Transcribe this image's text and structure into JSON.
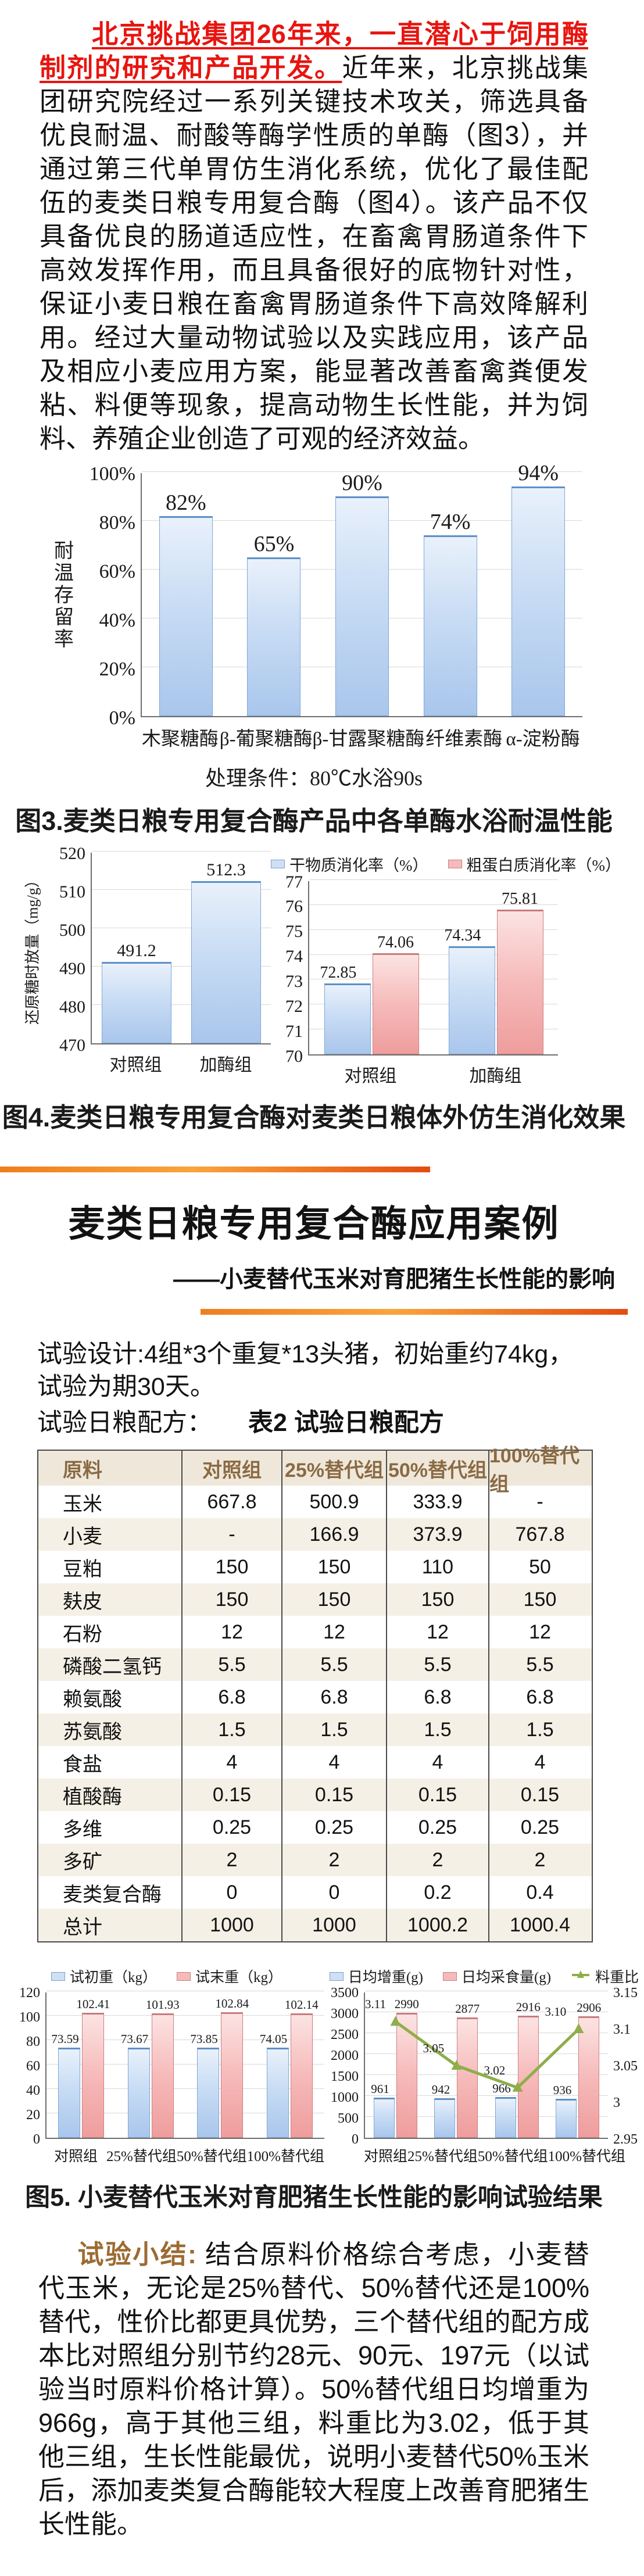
{
  "intro": {
    "highlight": "北京挑战集团26年来，一直潜心于饲用酶制剂的研究和产品开发。",
    "body": "近年来，北京挑战集团研究院经过一系列关键技术攻关，筛选具备优良耐温、耐酸等酶学性质的单酶（图3），并通过第三代单胃仿生消化系统，优化了最佳配伍的麦类日粮专用复合酶（图4）。该产品不仅具备优良的肠道适应性，在畜禽胃肠道条件下高效发挥作用，而且具备很好的底物针对性，保证小麦日粮在畜禽胃肠道条件下高效降解利用。经过大量动物试验以及实践应用，该产品及相应小麦应用方案，能显著改善畜禽粪便发粘、料便等现象，提高动物生长性能，并为饲料、养殖企业创造了可观的经济效益。"
  },
  "figure3": {
    "condition": "处理条件：80℃水浴90s",
    "caption": "图3.麦类日粮专用复合酶产品中各单酶水浴耐温性能"
  },
  "figure4": {
    "caption": "图4.麦类日粮专用复合酶对麦类日粮体外仿生消化效果"
  },
  "case_section": {
    "title": "麦类日粮专用复合酶应用案例",
    "subtitle": "——小麦替代玉米对育肥猪生长性能的影响",
    "design_line": "试验设计:4组*3个重复*13头猪，初始重约74kg，试验为期30天。",
    "formula_label": "试验日粮配方：",
    "table_title": "表2 试验日粮配方"
  },
  "table2": {
    "headers": [
      "原料",
      "对照组",
      "25%替代组",
      "50%替代组",
      "100%替代组"
    ],
    "rows": [
      [
        "玉米",
        "667.8",
        "500.9",
        "333.9",
        "-"
      ],
      [
        "小麦",
        "-",
        "166.9",
        "373.9",
        "767.8"
      ],
      [
        "豆粕",
        "150",
        "150",
        "110",
        "50"
      ],
      [
        "麸皮",
        "150",
        "150",
        "150",
        "150"
      ],
      [
        "石粉",
        "12",
        "12",
        "12",
        "12"
      ],
      [
        "磷酸二氢钙",
        "5.5",
        "5.5",
        "5.5",
        "5.5"
      ],
      [
        "赖氨酸",
        "6.8",
        "6.8",
        "6.8",
        "6.8"
      ],
      [
        "苏氨酸",
        "1.5",
        "1.5",
        "1.5",
        "1.5"
      ],
      [
        "食盐",
        "4",
        "4",
        "4",
        "4"
      ],
      [
        "植酸酶",
        "0.15",
        "0.15",
        "0.15",
        "0.15"
      ],
      [
        "多维",
        "0.25",
        "0.25",
        "0.25",
        "0.25"
      ],
      [
        "多矿",
        "2",
        "2",
        "2",
        "2"
      ],
      [
        "麦类复合酶",
        "0",
        "0",
        "0.2",
        "0.4"
      ],
      [
        "总计",
        "1000",
        "1000",
        "1000.2",
        "1000.4"
      ]
    ]
  },
  "figure5": {
    "caption": "图5. 小麦替代玉米对育肥猪生长性能的影响试验结果"
  },
  "summary": {
    "label": "试验小结:",
    "body": "结合原料价格综合考虑，小麦替代玉米，无论是25%替代、50%替代还是100%替代，性价比都更具优势，三个替代组的配方成本比对照组分别节约28元、90元、197元（以试验当时原料价格计算）。50%替代组日均增重为966g，高于其他三组，料重比为3.02，低于其他三组，生长性能最优，说明小麦替代50%玉米后，添加麦类复合酶能较大程度上改善育肥猪生长性能。"
  },
  "chart_data": [
    {
      "id": "fig3",
      "type": "bar",
      "title": "图3.麦类日粮专用复合酶产品中各单酶水浴耐温性能",
      "categories": [
        "木聚糖酶",
        "β-葡聚糖酶",
        "β-甘露聚糖酶",
        "纤维素酶",
        "α-淀粉酶"
      ],
      "values": [
        82,
        65,
        90,
        74,
        94
      ],
      "value_labels": [
        "82%",
        "65%",
        "90%",
        "74%",
        "94%"
      ],
      "ylabel": "耐温存留率",
      "yticks": [
        "100%",
        "80%",
        "60%",
        "40%",
        "20%",
        "0%"
      ],
      "ytick_values": [
        100,
        80,
        60,
        40,
        20,
        0
      ],
      "ylim": [
        0,
        100
      ],
      "grid": true,
      "annotation": "处理条件：80℃水浴90s"
    },
    {
      "id": "fig4_left",
      "type": "bar",
      "categories": [
        "对照组",
        "加酶组"
      ],
      "values": [
        491.2,
        512.3
      ],
      "value_labels": [
        "491.2",
        "512.3"
      ],
      "ylabel": "还原糖时放量（mg/g）",
      "yticks": [
        "520",
        "510",
        "500",
        "490",
        "480",
        "470"
      ],
      "ytick_values": [
        520,
        510,
        500,
        490,
        480,
        470
      ],
      "ylim": [
        470,
        520
      ],
      "grid": true
    },
    {
      "id": "fig4_right",
      "type": "bar",
      "categories": [
        "对照组",
        "加酶组"
      ],
      "series": [
        {
          "name": "干物质消化率（%）",
          "values": [
            72.85,
            74.34
          ],
          "color_role": "blue"
        },
        {
          "name": "粗蛋白质消化率（%）",
          "values": [
            74.06,
            75.81
          ],
          "color_role": "pink"
        }
      ],
      "yticks": [
        "77",
        "76",
        "75",
        "74",
        "73",
        "72",
        "71",
        "70"
      ],
      "ytick_values": [
        77,
        76,
        75,
        74,
        73,
        72,
        71,
        70
      ],
      "ylim": [
        70,
        77
      ],
      "grid": true,
      "legend_position": "top"
    },
    {
      "id": "fig5_left",
      "type": "bar",
      "categories": [
        "对照组",
        "25%替代组",
        "50%替代组",
        "100%替代组"
      ],
      "series": [
        {
          "name": "试初重（kg）",
          "values": [
            73.59,
            73.67,
            73.85,
            74.05
          ],
          "color_role": "blue"
        },
        {
          "name": "试末重（kg）",
          "values": [
            102.41,
            101.93,
            102.84,
            102.14
          ],
          "color_role": "pink"
        }
      ],
      "yticks": [
        "120",
        "100",
        "80",
        "60",
        "40",
        "20",
        "0"
      ],
      "ytick_values": [
        120,
        100,
        80,
        60,
        40,
        20,
        0
      ],
      "ylim": [
        0,
        120
      ],
      "grid": true,
      "legend_position": "top"
    },
    {
      "id": "fig5_right",
      "type": "bar+line",
      "categories": [
        "对照组",
        "25%替代组",
        "50%替代组",
        "100%替代组"
      ],
      "series": [
        {
          "name": "日均增重(g)",
          "values": [
            961,
            942,
            966,
            936
          ],
          "color_role": "blue"
        },
        {
          "name": "日均采食量(g)",
          "values": [
            2990,
            2877,
            2916,
            2906
          ],
          "color_role": "pink"
        }
      ],
      "line_series": {
        "name": "料重比",
        "values": [
          3.11,
          3.05,
          3.02,
          3.1
        ],
        "axis": "right"
      },
      "yticks": [
        "3500",
        "3000",
        "2500",
        "2000",
        "1500",
        "1000",
        "500",
        "0"
      ],
      "ytick_values": [
        3500,
        3000,
        2500,
        2000,
        1500,
        1000,
        500,
        0
      ],
      "ylim": [
        0,
        3500
      ],
      "yticks_right": [
        "3.15",
        "3.1",
        "3.05",
        "3",
        "2.95"
      ],
      "ytick_right_values": [
        3.15,
        3.1,
        3.05,
        3,
        2.95
      ],
      "ylim_right": [
        2.95,
        3.15
      ],
      "grid": true,
      "legend_position": "top"
    }
  ],
  "colors": {
    "highlight_red": "#e8140f",
    "rule_orange_start": "#ee7f1f",
    "rule_orange_mid": "#f9a43d",
    "rule_orange_end": "#e34d10",
    "table_header_text": "#8a6a44",
    "table_row_tan": "#f5f0e6",
    "summary_label_brown": "#9c6b33",
    "bar_blue": "#c8dcf4",
    "bar_pink": "#f6baba",
    "line_green": "#8fae4b"
  }
}
